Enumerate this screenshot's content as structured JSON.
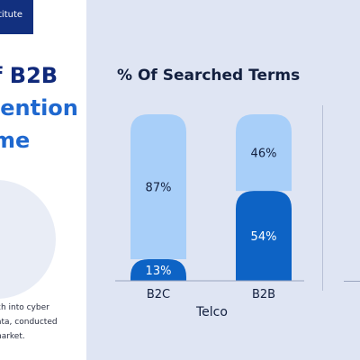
{
  "left": {
    "brand": "titute",
    "title_lines": [
      "f B2B",
      "lention",
      "me"
    ],
    "note_lines": [
      "ch into cyber",
      "ata, conducted",
      "narket."
    ]
  },
  "chart_data": {
    "type": "bar",
    "stacked": true,
    "title": "% Of Searched Terms",
    "categories": [
      "B2C",
      "B2B"
    ],
    "group_label": "Telco",
    "series": [
      {
        "values": [
          13,
          54
        ],
        "color": "#0d63c5"
      },
      {
        "values": [
          87,
          46
        ],
        "color": "#a8cff9"
      }
    ],
    "ylim": [
      0,
      100
    ],
    "value_labels": [
      [
        "13%",
        "54%"
      ],
      [
        "87%",
        "46%"
      ]
    ]
  }
}
